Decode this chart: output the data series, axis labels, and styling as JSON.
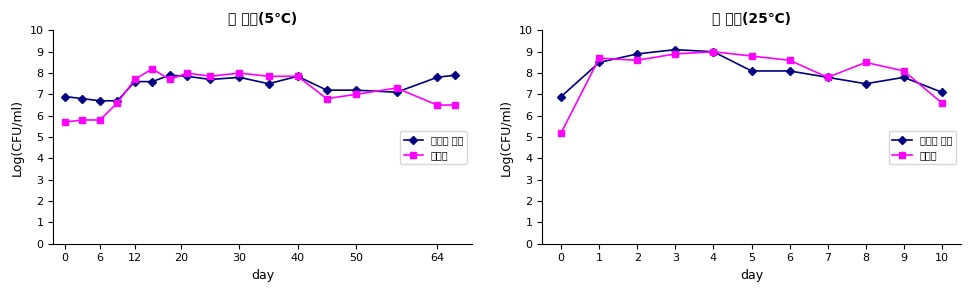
{
  "title_left": "총 균수(5℃)",
  "title_right": "총 균수(25℃)",
  "ylabel": "Log(CFU/ml)",
  "xlabel": "day",
  "ylim": [
    0,
    10
  ],
  "yticks": [
    0,
    1,
    2,
    3,
    4,
    5,
    6,
    7,
    8,
    9,
    10
  ],
  "left_x_lab": [
    0,
    3,
    6,
    9,
    12,
    15,
    18,
    21,
    25,
    30,
    35,
    40,
    45,
    50,
    57,
    64,
    67
  ],
  "left_y_lab": [
    6.9,
    6.8,
    6.7,
    6.7,
    7.6,
    7.6,
    7.9,
    7.85,
    7.7,
    7.8,
    7.5,
    7.85,
    7.2,
    7.2,
    7.1,
    7.8,
    7.9
  ],
  "left_x_ctrl": [
    0,
    3,
    6,
    9,
    12,
    15,
    18,
    21,
    25,
    30,
    35,
    40,
    45,
    50,
    57,
    64,
    67
  ],
  "left_y_ctrl": [
    5.7,
    5.8,
    5.8,
    6.6,
    7.7,
    8.2,
    7.7,
    8.0,
    7.85,
    8.0,
    7.85,
    7.85,
    6.8,
    7.0,
    7.3,
    6.5,
    6.5
  ],
  "right_x_lab": [
    0,
    1,
    2,
    3,
    4,
    5,
    6,
    7,
    8,
    9,
    10
  ],
  "right_y_lab": [
    6.9,
    8.5,
    8.9,
    9.1,
    9.0,
    8.1,
    8.1,
    7.8,
    7.5,
    7.8,
    7.1
  ],
  "right_x_ctrl": [
    0,
    1,
    2,
    3,
    4,
    5,
    6,
    7,
    8,
    9,
    10
  ],
  "right_y_ctrl": [
    5.2,
    8.7,
    8.6,
    8.9,
    9.0,
    8.8,
    8.6,
    7.8,
    8.5,
    8.1,
    6.6
  ],
  "left_xticks": [
    0,
    6,
    12,
    20,
    30,
    40,
    50,
    64
  ],
  "right_xticks": [
    0,
    1,
    2,
    3,
    4,
    5,
    6,
    7,
    8,
    9,
    10
  ],
  "color_lab": "#000080",
  "color_ctrl": "#FF00FF",
  "legend_lab": "유산균 첨가",
  "legend_ctrl": "대조구"
}
